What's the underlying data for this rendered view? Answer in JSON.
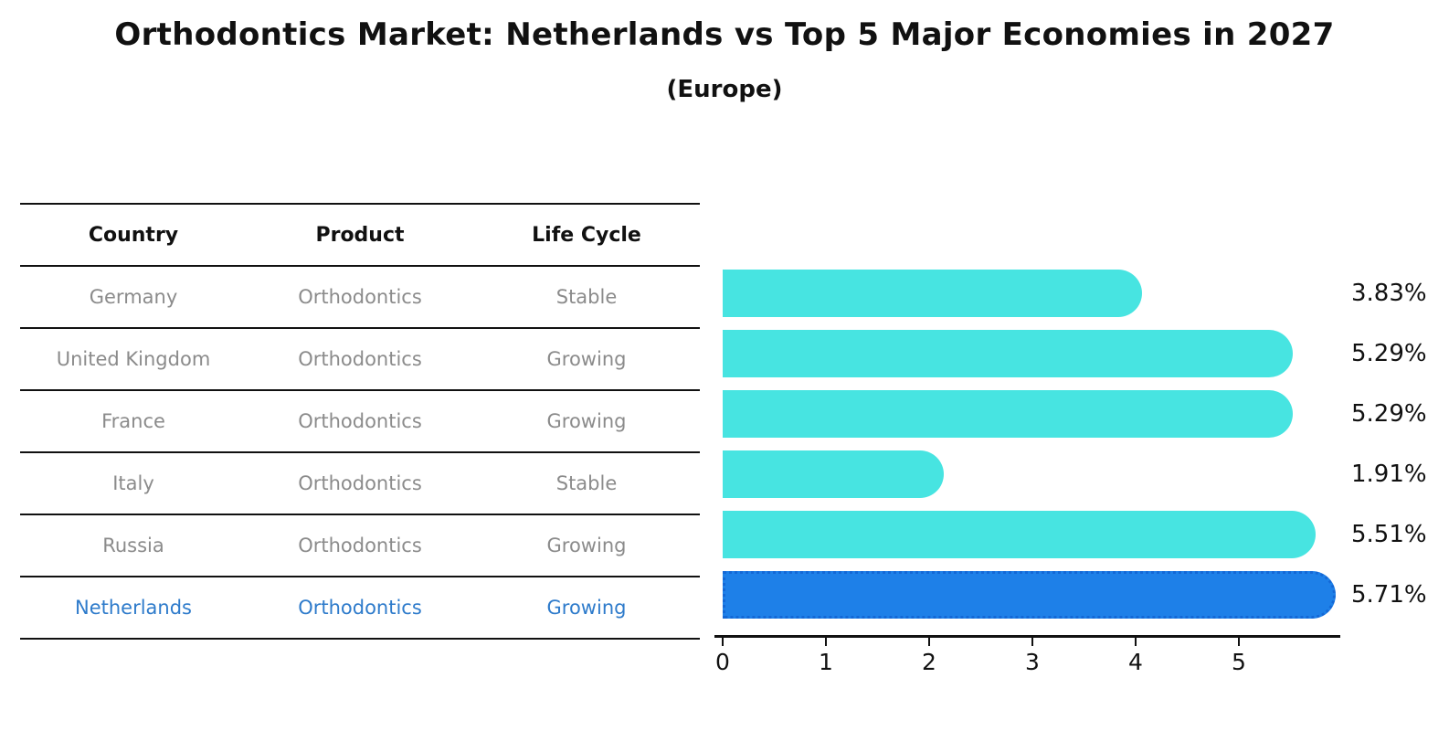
{
  "title": "Orthodontics Market: Netherlands vs Top 5 Major Economies in 2027",
  "subtitle": "(Europe)",
  "table": {
    "headers": [
      "Country",
      "Product",
      "Life Cycle"
    ],
    "rows": [
      {
        "country": "Germany",
        "product": "Orthodontics",
        "life_cycle": "Stable",
        "highlighted": false
      },
      {
        "country": "United Kingdom",
        "product": "Orthodontics",
        "life_cycle": "Growing",
        "highlighted": false
      },
      {
        "country": "France",
        "product": "Orthodontics",
        "life_cycle": "Growing",
        "highlighted": false
      },
      {
        "country": "Italy",
        "product": "Orthodontics",
        "life_cycle": "Stable",
        "highlighted": false
      },
      {
        "country": "Russia",
        "product": "Orthodontics",
        "life_cycle": "Growing",
        "highlighted": false
      },
      {
        "country": "Netherlands",
        "product": "Orthodontics",
        "life_cycle": "Growing",
        "highlighted": true
      }
    ]
  },
  "chart_data": {
    "type": "bar",
    "orientation": "horizontal",
    "title": "Orthodontics Market: Netherlands vs Top 5 Major Economies in 2027",
    "subtitle": "(Europe)",
    "categories": [
      "Germany",
      "United Kingdom",
      "France",
      "Italy",
      "Russia",
      "Netherlands"
    ],
    "values": [
      3.83,
      5.29,
      5.29,
      1.91,
      5.51,
      5.71
    ],
    "value_labels": [
      "3.83%",
      "5.29%",
      "5.29%",
      "1.91%",
      "5.51%",
      "5.71%"
    ],
    "unit": "%",
    "xlabel": "",
    "ylabel": "",
    "xticks": [
      0,
      1,
      2,
      3,
      4,
      5
    ],
    "xtick_labels": [
      "0",
      "1",
      "2",
      "3",
      "4",
      "5"
    ],
    "xlim": [
      0,
      6
    ],
    "grid": false,
    "legend": false,
    "bar_color": "#47e4e1",
    "highlight_bar_color": "#1e80e8",
    "highlight_border_color": "#1468d6",
    "highlight_category": "Netherlands",
    "highlight_index": 5
  },
  "colors": {
    "text_primary": "#111111",
    "text_muted": "#8b8b8b",
    "highlight_text": "#2e7bcb",
    "background": "#ffffff"
  }
}
